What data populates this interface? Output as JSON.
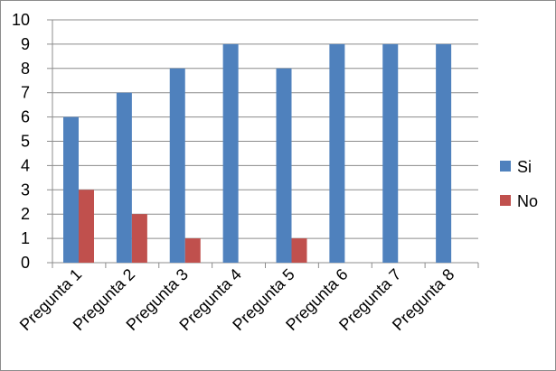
{
  "chart_data": {
    "type": "bar",
    "title": "",
    "xlabel": "",
    "ylabel": "",
    "categories": [
      "Pregunta 1",
      "Pregunta 2",
      "Pregunta 3",
      "Pregunta 4",
      "Pregunta 5",
      "Pregunta 6",
      "Pregunta 7",
      "Pregunta 8"
    ],
    "series": [
      {
        "name": "Si",
        "color": "#4f81bd",
        "values": [
          6,
          7,
          8,
          9,
          8,
          9,
          9,
          9
        ]
      },
      {
        "name": "No",
        "color": "#c0504d",
        "values": [
          3,
          2,
          1,
          0,
          1,
          0,
          0,
          0
        ]
      }
    ],
    "ylim": [
      0,
      10
    ],
    "yticks": [
      "0",
      "1",
      "2",
      "3",
      "4",
      "5",
      "6",
      "7",
      "8",
      "9",
      "10"
    ],
    "grid": true,
    "legend_position": "right"
  }
}
